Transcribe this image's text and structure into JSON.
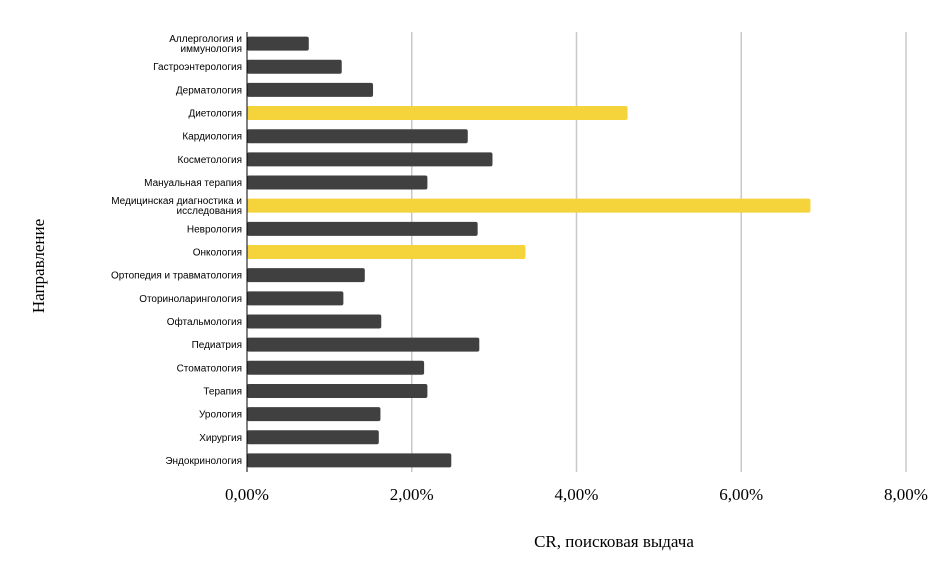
{
  "chart_data": {
    "type": "bar",
    "orientation": "horizontal",
    "xlabel": "CR, поисковая выдача",
    "ylabel": "Направление",
    "xlim": [
      0,
      8
    ],
    "xticks": [
      0,
      2,
      4,
      6,
      8
    ],
    "xtick_labels": [
      "0,00%",
      "2,00%",
      "4,00%",
      "6,00%",
      "8,00%"
    ],
    "grid": true,
    "colors": {
      "default": "#404040",
      "highlight": "#f5d33a"
    },
    "categories": [
      "Аллергология и иммунология",
      "Гастроэнтерология",
      "Дерматология",
      "Диетология",
      "Кардиология",
      "Косметология",
      "Мануальная терапия",
      "Медицинская диагностика и исследования",
      "Неврология",
      "Онкология",
      "Ортопедия и травматология",
      "Оториноларингология",
      "Офтальмология",
      "Педиатрия",
      "Стоматология",
      "Терапия",
      "Урология",
      "Хирургия",
      "Эндокринология"
    ],
    "values": [
      0.75,
      1.15,
      1.53,
      4.62,
      2.68,
      2.98,
      2.19,
      6.84,
      2.8,
      3.38,
      1.43,
      1.17,
      1.63,
      2.82,
      2.15,
      2.19,
      1.62,
      1.6,
      2.48
    ],
    "highlighted": [
      false,
      false,
      false,
      true,
      false,
      false,
      false,
      true,
      false,
      true,
      false,
      false,
      false,
      false,
      false,
      false,
      false,
      false,
      false
    ],
    "category_label_lines": [
      [
        "Аллергология и",
        "иммунология"
      ],
      [
        "Гастроэнтерология"
      ],
      [
        "Дерматология"
      ],
      [
        "Диетология"
      ],
      [
        "Кардиология"
      ],
      [
        "Косметология"
      ],
      [
        "Мануальная терапия"
      ],
      [
        "Медицинская диагностика и",
        "исследования"
      ],
      [
        "Неврология"
      ],
      [
        "Онкология"
      ],
      [
        "Ортопедия и травматология"
      ],
      [
        "Оториноларингология"
      ],
      [
        "Офтальмология"
      ],
      [
        "Педиатрия"
      ],
      [
        "Стоматология"
      ],
      [
        "Терапия"
      ],
      [
        "Урология"
      ],
      [
        "Хирургия"
      ],
      [
        "Эндокринология"
      ]
    ]
  }
}
